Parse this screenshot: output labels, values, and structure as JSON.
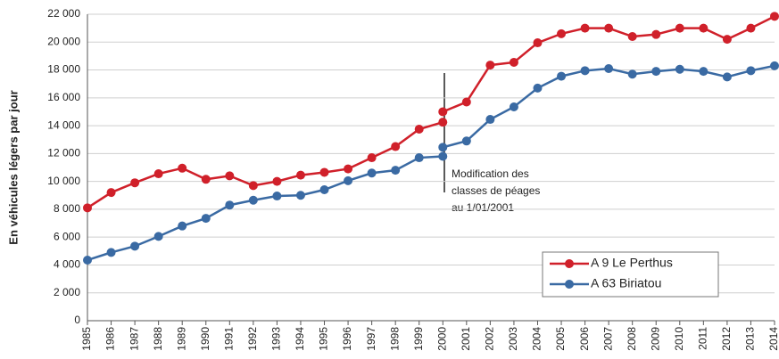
{
  "chart_data": {
    "type": "line",
    "y_label": "En véhicules légers par jour",
    "x": [
      1985,
      1986,
      1987,
      1988,
      1989,
      1990,
      1991,
      1992,
      1993,
      1994,
      1995,
      1996,
      1997,
      1998,
      1999,
      2000,
      2000,
      2000,
      2001,
      2002,
      2003,
      2004,
      2005,
      2006,
      2007,
      2008,
      2009,
      2010,
      2011,
      2012,
      2013,
      2014
    ],
    "series": [
      {
        "name": "A 9 Le Perthus",
        "color": "#d0202a",
        "values": [
          8100,
          9200,
          9900,
          10550,
          10950,
          10150,
          10400,
          9700,
          10000,
          10450,
          10650,
          10900,
          11700,
          12500,
          13750,
          14250,
          null,
          15000,
          15700,
          18350,
          18550,
          19950,
          20600,
          21000,
          21000,
          20400,
          20550,
          21000,
          21000,
          20200,
          21000,
          21850
        ]
      },
      {
        "name": "A 63 Biriatou",
        "color": "#3a6aa3",
        "values": [
          4350,
          4900,
          5350,
          6050,
          6800,
          7350,
          8300,
          8650,
          8950,
          9000,
          9400,
          10050,
          10600,
          10800,
          11700,
          11800,
          null,
          12450,
          12900,
          14450,
          15350,
          16700,
          17550,
          17950,
          18100,
          17700,
          17900,
          18050,
          17900,
          17500,
          17950,
          18300
        ]
      }
    ],
    "xlim": [
      1985,
      2014
    ],
    "xticks": [
      1985,
      1986,
      1987,
      1988,
      1989,
      1990,
      1991,
      1992,
      1993,
      1994,
      1995,
      1996,
      1997,
      1998,
      1999,
      2000,
      2001,
      2002,
      2003,
      2004,
      2005,
      2006,
      2007,
      2008,
      2009,
      2010,
      2011,
      2012,
      2013,
      2014
    ],
    "ylim": [
      0,
      22000
    ],
    "yticks": [
      0,
      {
        "value": 2000,
        "label": "2 000"
      },
      {
        "value": 4000,
        "label": "4 000"
      },
      {
        "value": 6000,
        "label": "6 000"
      },
      {
        "value": 8000,
        "label": "8 000"
      },
      {
        "value": 10000,
        "label": "10 000"
      },
      {
        "value": 12000,
        "label": "12 000"
      },
      {
        "value": 14000,
        "label": "14 000"
      },
      {
        "value": 16000,
        "label": "16 000"
      },
      {
        "value": 18000,
        "label": "18 000"
      },
      {
        "value": 20000,
        "label": "20 000"
      },
      {
        "value": 22000,
        "label": "22 000"
      }
    ],
    "grid": true,
    "legend": "lower right",
    "annotation": [
      "Modification des",
      "classes de péages",
      "au 1/01/2001"
    ]
  }
}
